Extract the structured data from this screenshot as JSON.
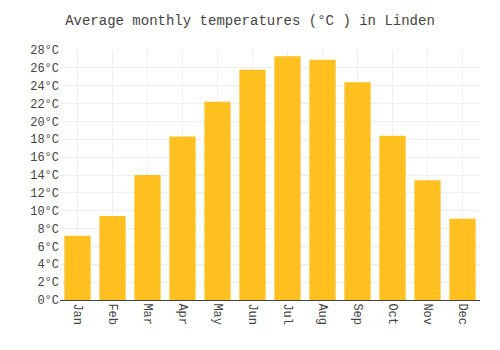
{
  "chart_data": {
    "type": "bar",
    "title": "Average monthly temperatures (°C ) in Linden",
    "categories": [
      "Jan",
      "Feb",
      "Mar",
      "Apr",
      "May",
      "Jun",
      "Jul",
      "Aug",
      "Sep",
      "Oct",
      "Nov",
      "Dec"
    ],
    "values": [
      7.2,
      9.4,
      14.0,
      18.3,
      22.2,
      25.8,
      27.3,
      26.9,
      24.4,
      18.4,
      13.4,
      9.1
    ],
    "color": "#FFC020",
    "ylim": [
      0,
      28
    ],
    "yticks": [
      {
        "value": 0,
        "label": "0°C"
      },
      {
        "value": 2,
        "label": "2°C"
      },
      {
        "value": 4,
        "label": "4°C"
      },
      {
        "value": 6,
        "label": "6°C"
      },
      {
        "value": 8,
        "label": "8°C"
      },
      {
        "value": 10,
        "label": "10°C"
      },
      {
        "value": 12,
        "label": "12°C"
      },
      {
        "value": 14,
        "label": "14°C"
      },
      {
        "value": 16,
        "label": "16°C"
      },
      {
        "value": 18,
        "label": "18°C"
      },
      {
        "value": 20,
        "label": "20°C"
      },
      {
        "value": 22,
        "label": "22°C"
      },
      {
        "value": 24,
        "label": "24°C"
      },
      {
        "value": 26,
        "label": "26°C"
      },
      {
        "value": 28,
        "label": "28°C"
      }
    ],
    "grid": true
  }
}
